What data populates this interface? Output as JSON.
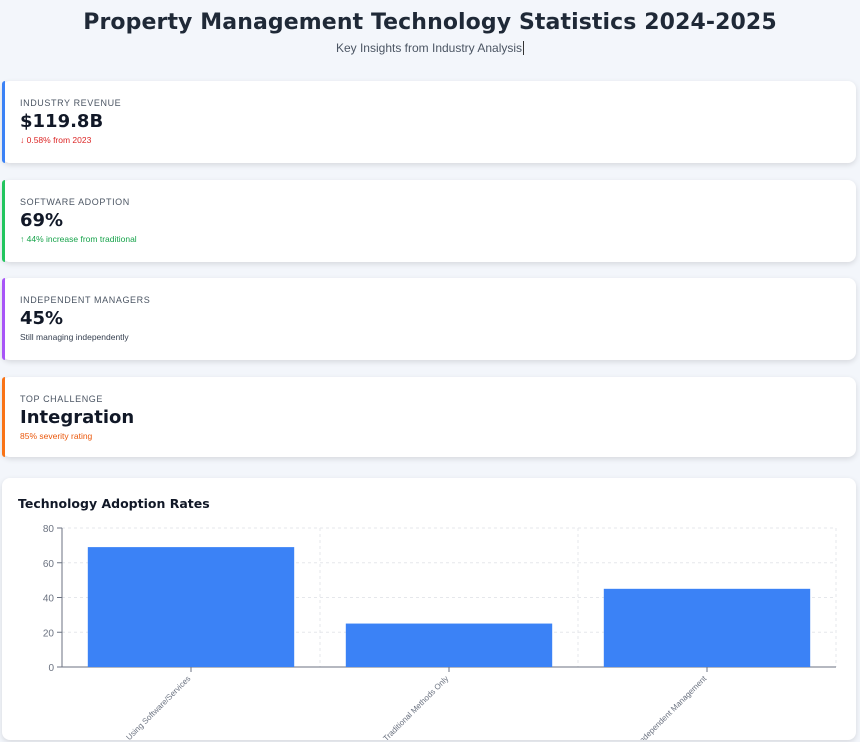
{
  "header": {
    "title": "Property Management Technology Statistics 2024-2025",
    "subtitle": "Key Insights from Industry Analysis"
  },
  "stats": [
    {
      "label": "INDUSTRY REVENUE",
      "value": "$119.8B",
      "note": "↓ 0.58% from 2023",
      "accent": "#3b82f6",
      "note_color": "#dc2626"
    },
    {
      "label": "SOFTWARE ADOPTION",
      "value": "69%",
      "note": "↑ 44% increase from traditional",
      "accent": "#22c55e",
      "note_color": "#16a34a"
    },
    {
      "label": "INDEPENDENT MANAGERS",
      "value": "45%",
      "note": "Still managing independently",
      "accent": "#a855f7",
      "note_color": "#374151"
    },
    {
      "label": "TOP CHALLENGE",
      "value": "Integration",
      "note": "85% severity rating",
      "accent": "#f97316",
      "note_color": "#ea580c"
    }
  ],
  "chart": {
    "title": "Technology Adoption Rates"
  },
  "chart_data": {
    "type": "bar",
    "categories": [
      "Using Software/Services",
      "Traditional Methods Only",
      "Independent Management"
    ],
    "values": [
      69,
      25,
      45
    ],
    "ylim": [
      0,
      80
    ],
    "yticks": [
      0,
      20,
      40,
      60,
      80
    ],
    "grid": true,
    "bar_color": "#3b82f6"
  }
}
